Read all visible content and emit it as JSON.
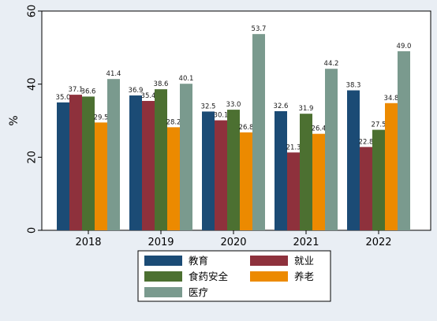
{
  "chart_data": {
    "type": "bar",
    "title": "",
    "xlabel": "",
    "ylabel": "%",
    "ylim": [
      0,
      60
    ],
    "yticks": [
      0,
      20,
      40,
      60
    ],
    "grid": false,
    "legend_position": "bottom",
    "categories": [
      "2018",
      "2019",
      "2020",
      "2021",
      "2022"
    ],
    "series": [
      {
        "name": "教育",
        "color": "#1b4b75",
        "values": [
          35.0,
          36.9,
          32.5,
          32.6,
          38.3
        ]
      },
      {
        "name": "就业",
        "color": "#8e313c",
        "values": [
          37.1,
          35.4,
          30.1,
          21.3,
          22.8
        ]
      },
      {
        "name": "食药安全",
        "color": "#4c7031",
        "values": [
          36.6,
          38.6,
          33.0,
          31.9,
          27.5
        ]
      },
      {
        "name": "养老",
        "color": "#ec8a00",
        "values": [
          29.5,
          28.2,
          26.8,
          26.4,
          34.8
        ]
      },
      {
        "name": "医疗",
        "color": "#7a9a8e",
        "values": [
          41.4,
          40.1,
          53.7,
          44.2,
          49.0
        ]
      }
    ]
  }
}
